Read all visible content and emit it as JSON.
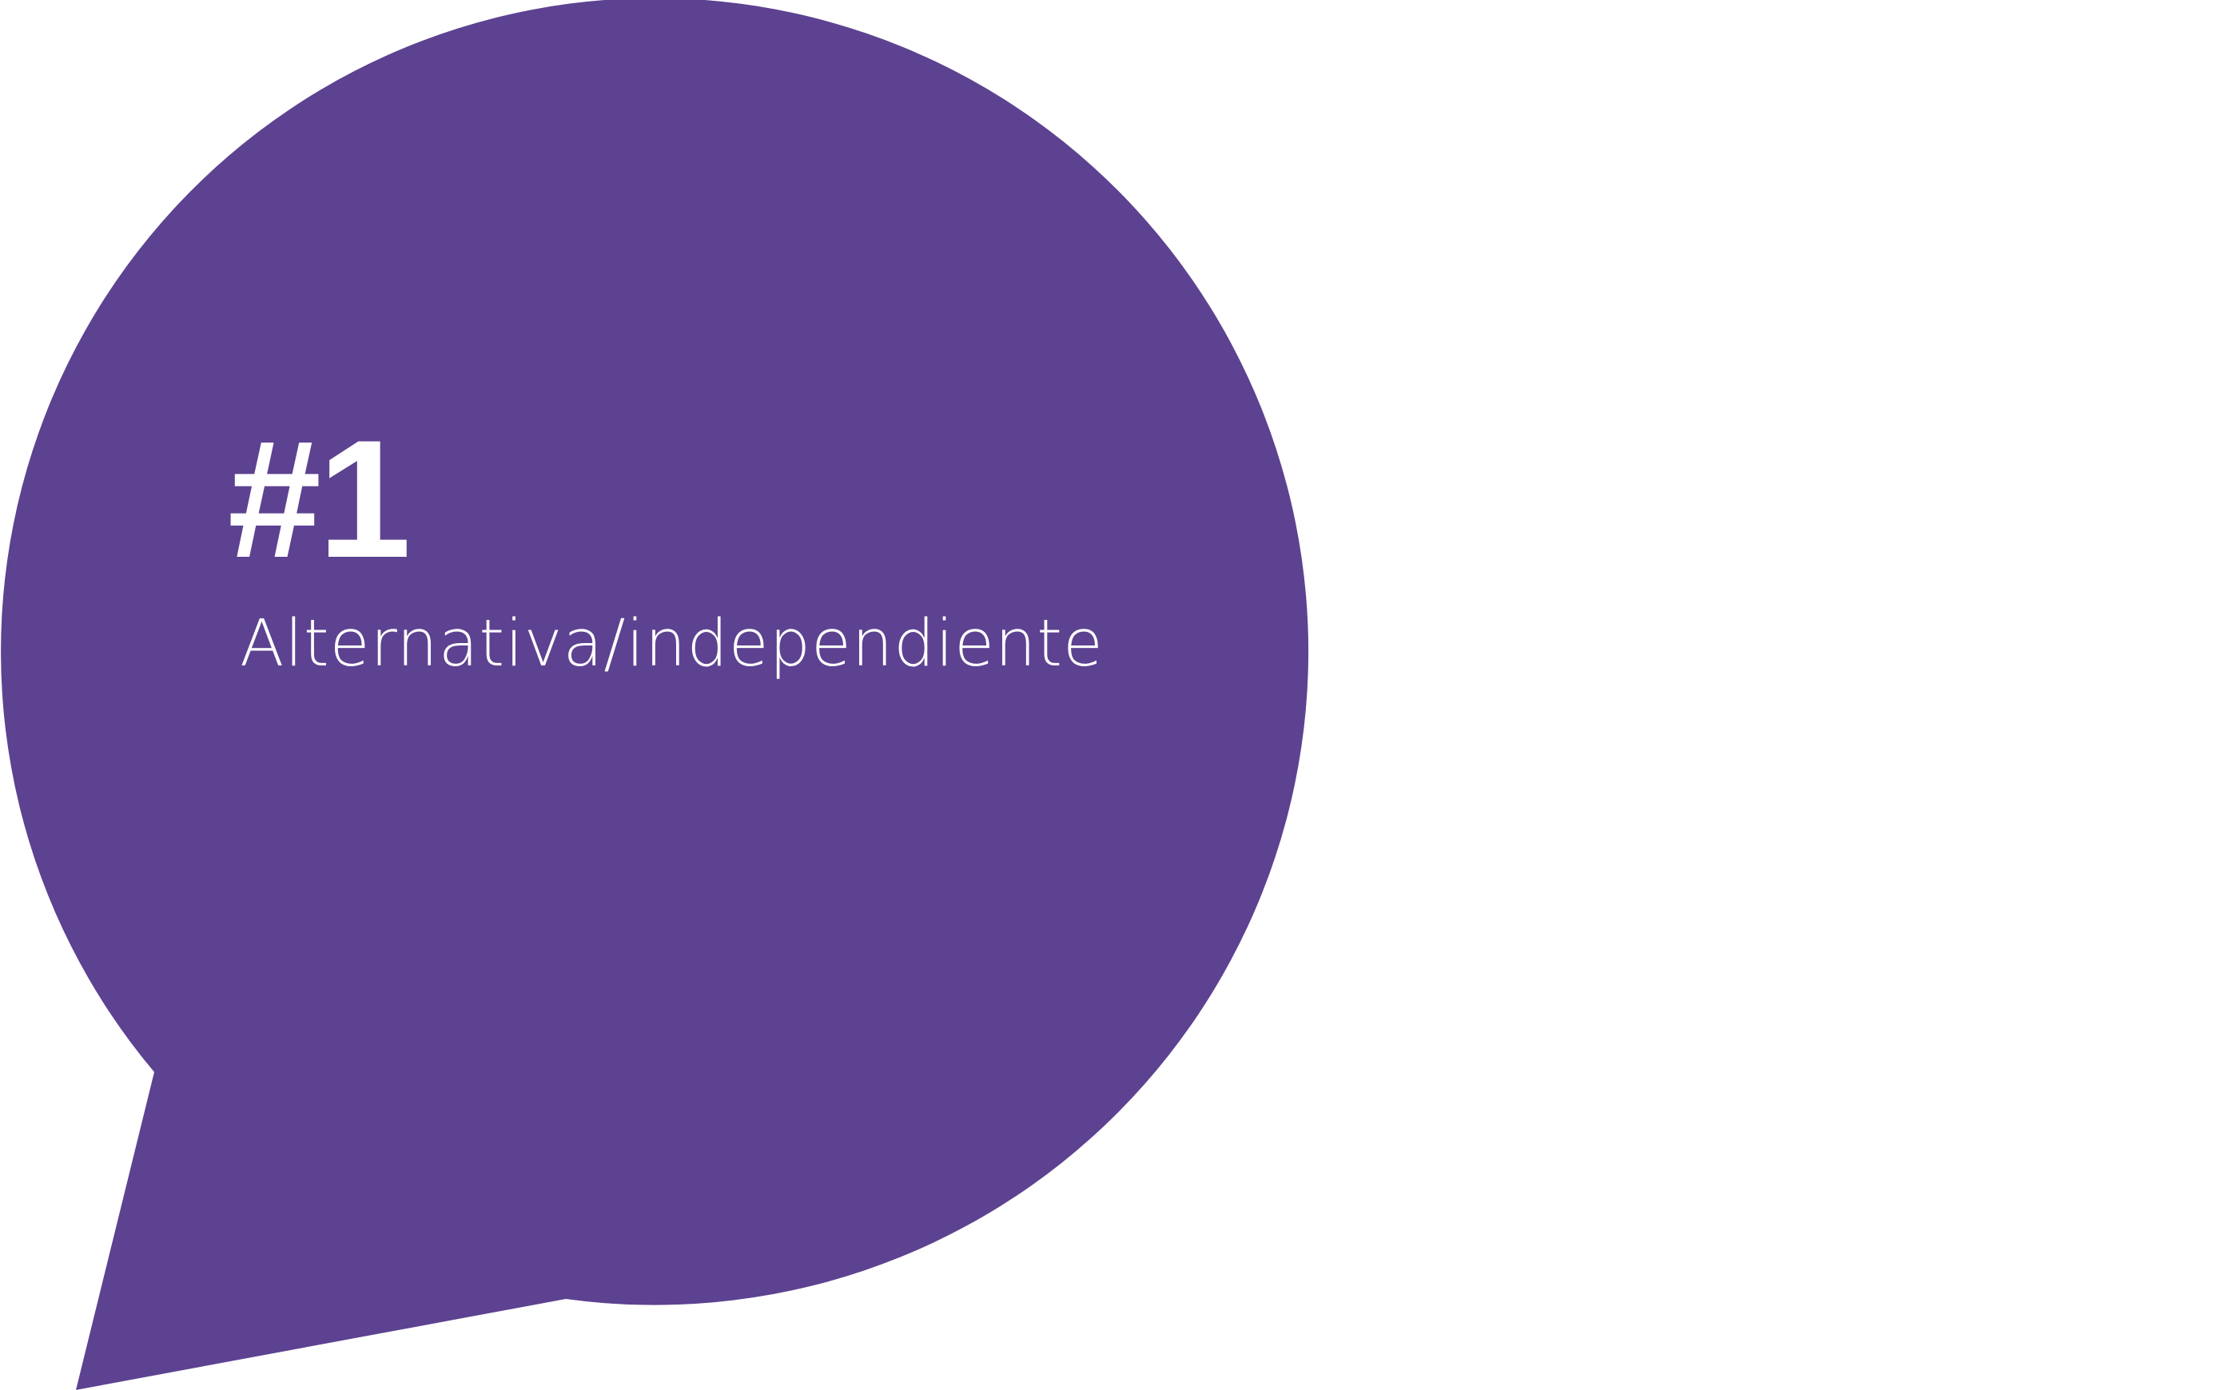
{
  "bubble": {
    "color": "#5d4291",
    "rank": "#1",
    "label": "Alternativa/independiente"
  },
  "background_color": "#ffffff"
}
